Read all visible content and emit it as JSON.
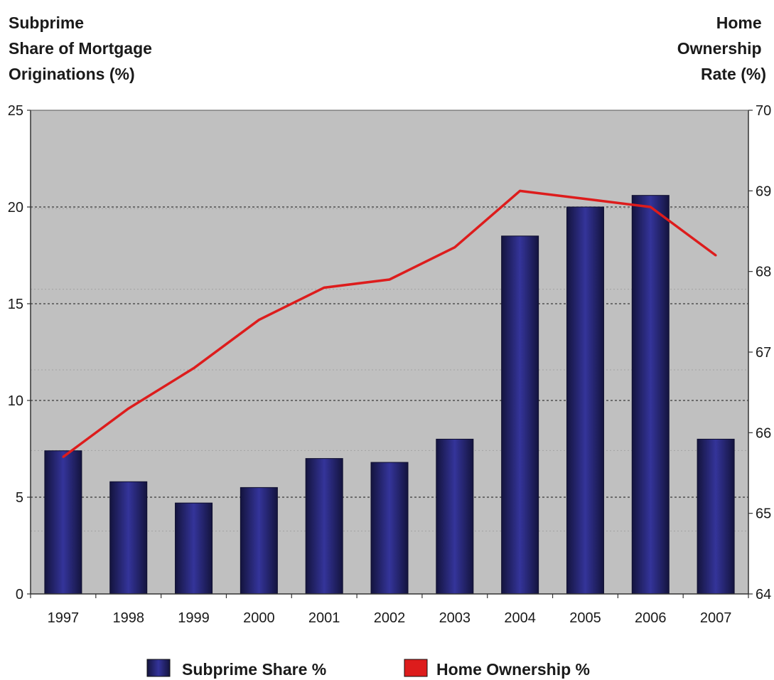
{
  "chart_data": {
    "type": "bar",
    "categories": [
      "1997",
      "1998",
      "1999",
      "2000",
      "2001",
      "2002",
      "2003",
      "2004",
      "2005",
      "2006",
      "2007"
    ],
    "series": [
      {
        "name": "Subprime Share %",
        "type": "bar",
        "axis": "left",
        "color": "#2a2a78",
        "values": [
          7.4,
          5.8,
          4.7,
          5.5,
          7.0,
          6.8,
          8.0,
          18.5,
          20.0,
          20.6,
          8.0
        ]
      },
      {
        "name": "Home Ownership %",
        "type": "line",
        "axis": "right",
        "color": "#dd1c1c",
        "values": [
          65.7,
          66.3,
          66.8,
          67.4,
          67.8,
          67.9,
          68.3,
          69.0,
          68.9,
          68.8,
          68.2
        ]
      }
    ],
    "left_axis": {
      "title_lines": [
        "Subprime",
        "Share of Mortgage",
        "Originations (%)"
      ],
      "ylim": [
        0,
        25
      ],
      "ticks": [
        "0",
        "5",
        "10",
        "15",
        "20",
        "25"
      ]
    },
    "right_axis": {
      "title_lines": [
        "Home",
        "Ownership",
        "Rate (%)"
      ],
      "ylim": [
        64,
        70
      ],
      "ticks": [
        "64",
        "65",
        "66",
        "67",
        "68",
        "69",
        "70"
      ]
    },
    "grid": "horizontal dotted",
    "background": "#c0c0c0",
    "legend_position": "bottom"
  }
}
